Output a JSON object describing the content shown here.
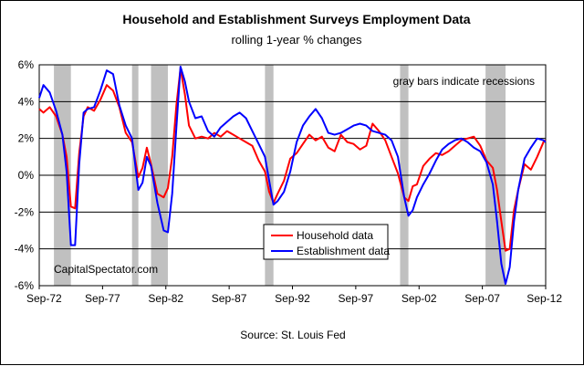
{
  "chart_data": {
    "type": "line",
    "title": "Household and Establishment Surveys Employment Data",
    "subtitle": "rolling 1-year % changes",
    "source": "Source:  St. Louis Fed",
    "watermark": "CapitalSpectator.com",
    "annotation": "gray bars indicate recessions",
    "xlabel": "",
    "ylabel": "",
    "ylim": [
      -6,
      6
    ],
    "yticks": [
      -6,
      -4,
      -2,
      0,
      2,
      4,
      6
    ],
    "ytick_labels": [
      "-6%",
      "-4%",
      "-2%",
      "0%",
      "2%",
      "4%",
      "6%"
    ],
    "xlim": [
      1972.67,
      2012.67
    ],
    "xticks": [
      1972.67,
      1977.67,
      1982.67,
      1987.67,
      1992.67,
      1997.67,
      2002.67,
      2007.67,
      2012.67
    ],
    "xtick_labels": [
      "Sep-72",
      "Sep-77",
      "Sep-82",
      "Sep-87",
      "Sep-92",
      "Sep-97",
      "Sep-02",
      "Sep-07",
      "Sep-12"
    ],
    "grid": true,
    "legend_position": "center",
    "recessions": [
      [
        1973.83,
        1975.17
      ],
      [
        1980.0,
        1980.5
      ],
      [
        1981.5,
        1982.83
      ],
      [
        1990.5,
        1991.17
      ],
      [
        2001.17,
        2001.83
      ],
      [
        2007.92,
        2009.5
      ]
    ],
    "recession_color": "#c0c0c0",
    "series": [
      {
        "name": "Household data",
        "color": "#ff0000",
        "x": [
          1972.67,
          1973.0,
          1973.5,
          1974.0,
          1974.5,
          1974.83,
          1975.17,
          1975.5,
          1975.83,
          1976.17,
          1976.5,
          1977.0,
          1977.5,
          1978.0,
          1978.5,
          1979.0,
          1979.5,
          1980.0,
          1980.5,
          1980.83,
          1981.17,
          1981.5,
          1982.0,
          1982.5,
          1982.83,
          1983.17,
          1983.5,
          1983.83,
          1984.17,
          1984.5,
          1985.0,
          1985.5,
          1986.0,
          1986.5,
          1987.0,
          1987.5,
          1988.0,
          1988.5,
          1989.0,
          1989.5,
          1990.0,
          1990.5,
          1990.83,
          1991.17,
          1991.5,
          1992.0,
          1992.5,
          1993.0,
          1993.5,
          1994.0,
          1994.5,
          1995.0,
          1995.5,
          1996.0,
          1996.5,
          1997.0,
          1997.5,
          1998.0,
          1998.5,
          1999.0,
          1999.5,
          2000.0,
          2000.5,
          2001.0,
          2001.5,
          2001.83,
          2002.17,
          2002.5,
          2003.0,
          2003.5,
          2004.0,
          2004.5,
          2005.0,
          2005.5,
          2006.0,
          2006.5,
          2007.0,
          2007.5,
          2008.0,
          2008.5,
          2008.83,
          2009.17,
          2009.5,
          2009.83,
          2010.17,
          2010.5,
          2011.0,
          2011.5,
          2012.0,
          2012.5,
          2012.67
        ],
        "values": [
          3.6,
          3.4,
          3.7,
          3.2,
          2.2,
          1.0,
          -1.7,
          -1.8,
          1.2,
          3.2,
          3.7,
          3.5,
          4.1,
          4.9,
          4.6,
          3.7,
          2.3,
          1.8,
          -0.1,
          0.4,
          1.5,
          0.6,
          -1.0,
          -1.2,
          -0.7,
          1.0,
          3.8,
          5.8,
          4.4,
          2.7,
          2.0,
          2.1,
          2.0,
          2.3,
          2.1,
          2.4,
          2.2,
          2.0,
          1.8,
          1.6,
          0.8,
          0.2,
          -0.9,
          -1.5,
          -1.0,
          -0.3,
          0.9,
          1.2,
          1.7,
          2.2,
          1.9,
          2.1,
          1.5,
          1.3,
          2.2,
          1.8,
          1.7,
          1.4,
          1.6,
          2.8,
          2.4,
          1.9,
          1.0,
          0.1,
          -1.2,
          -1.4,
          -0.6,
          -0.5,
          0.5,
          0.9,
          1.2,
          1.1,
          1.3,
          1.6,
          1.9,
          2.0,
          2.1,
          1.6,
          0.8,
          0.4,
          -0.8,
          -2.5,
          -4.1,
          -4.0,
          -1.9,
          -0.8,
          0.6,
          0.3,
          1.0,
          1.8,
          1.9
        ]
      },
      {
        "name": "Establishment data",
        "color": "#0000ff",
        "x": [
          1972.67,
          1973.0,
          1973.5,
          1974.0,
          1974.5,
          1974.83,
          1975.17,
          1975.5,
          1975.83,
          1976.17,
          1976.5,
          1977.0,
          1977.5,
          1978.0,
          1978.5,
          1979.0,
          1979.5,
          1980.0,
          1980.5,
          1980.83,
          1981.17,
          1981.5,
          1982.0,
          1982.5,
          1982.83,
          1983.17,
          1983.5,
          1983.83,
          1984.17,
          1984.5,
          1985.0,
          1985.5,
          1986.0,
          1986.5,
          1987.0,
          1987.5,
          1988.0,
          1988.5,
          1989.0,
          1989.5,
          1990.0,
          1990.5,
          1990.83,
          1991.17,
          1991.5,
          1992.0,
          1992.5,
          1993.0,
          1993.5,
          1994.0,
          1994.5,
          1995.0,
          1995.5,
          1996.0,
          1996.5,
          1997.0,
          1997.5,
          1998.0,
          1998.5,
          1999.0,
          1999.5,
          2000.0,
          2000.5,
          2001.0,
          2001.5,
          2001.83,
          2002.17,
          2002.5,
          2003.0,
          2003.5,
          2004.0,
          2004.5,
          2005.0,
          2005.5,
          2006.0,
          2006.5,
          2007.0,
          2007.5,
          2008.0,
          2008.5,
          2008.83,
          2009.17,
          2009.5,
          2009.83,
          2010.17,
          2010.5,
          2011.0,
          2011.5,
          2012.0,
          2012.5,
          2012.67
        ],
        "values": [
          4.2,
          4.9,
          4.5,
          3.5,
          2.2,
          0.2,
          -3.8,
          -3.8,
          0.6,
          3.4,
          3.6,
          3.7,
          4.6,
          5.7,
          5.5,
          3.8,
          2.7,
          2.0,
          -0.8,
          -0.4,
          1.0,
          0.5,
          -1.5,
          -3.0,
          -3.1,
          -1.0,
          2.6,
          5.9,
          5.1,
          4.0,
          3.1,
          3.2,
          2.4,
          2.1,
          2.6,
          2.9,
          3.2,
          3.4,
          3.1,
          2.4,
          1.7,
          1.0,
          -0.3,
          -1.6,
          -1.4,
          -0.9,
          0.2,
          1.8,
          2.7,
          3.2,
          3.6,
          3.1,
          2.3,
          2.2,
          2.3,
          2.5,
          2.7,
          2.8,
          2.7,
          2.4,
          2.3,
          2.2,
          1.9,
          1.0,
          -1.2,
          -2.2,
          -1.9,
          -1.2,
          -0.5,
          0.1,
          0.8,
          1.4,
          1.7,
          1.9,
          2.0,
          1.8,
          1.5,
          1.3,
          0.7,
          -0.5,
          -2.5,
          -4.8,
          -5.9,
          -5.0,
          -2.5,
          -0.8,
          0.9,
          1.5,
          2.0,
          1.9,
          1.8
        ]
      }
    ]
  }
}
